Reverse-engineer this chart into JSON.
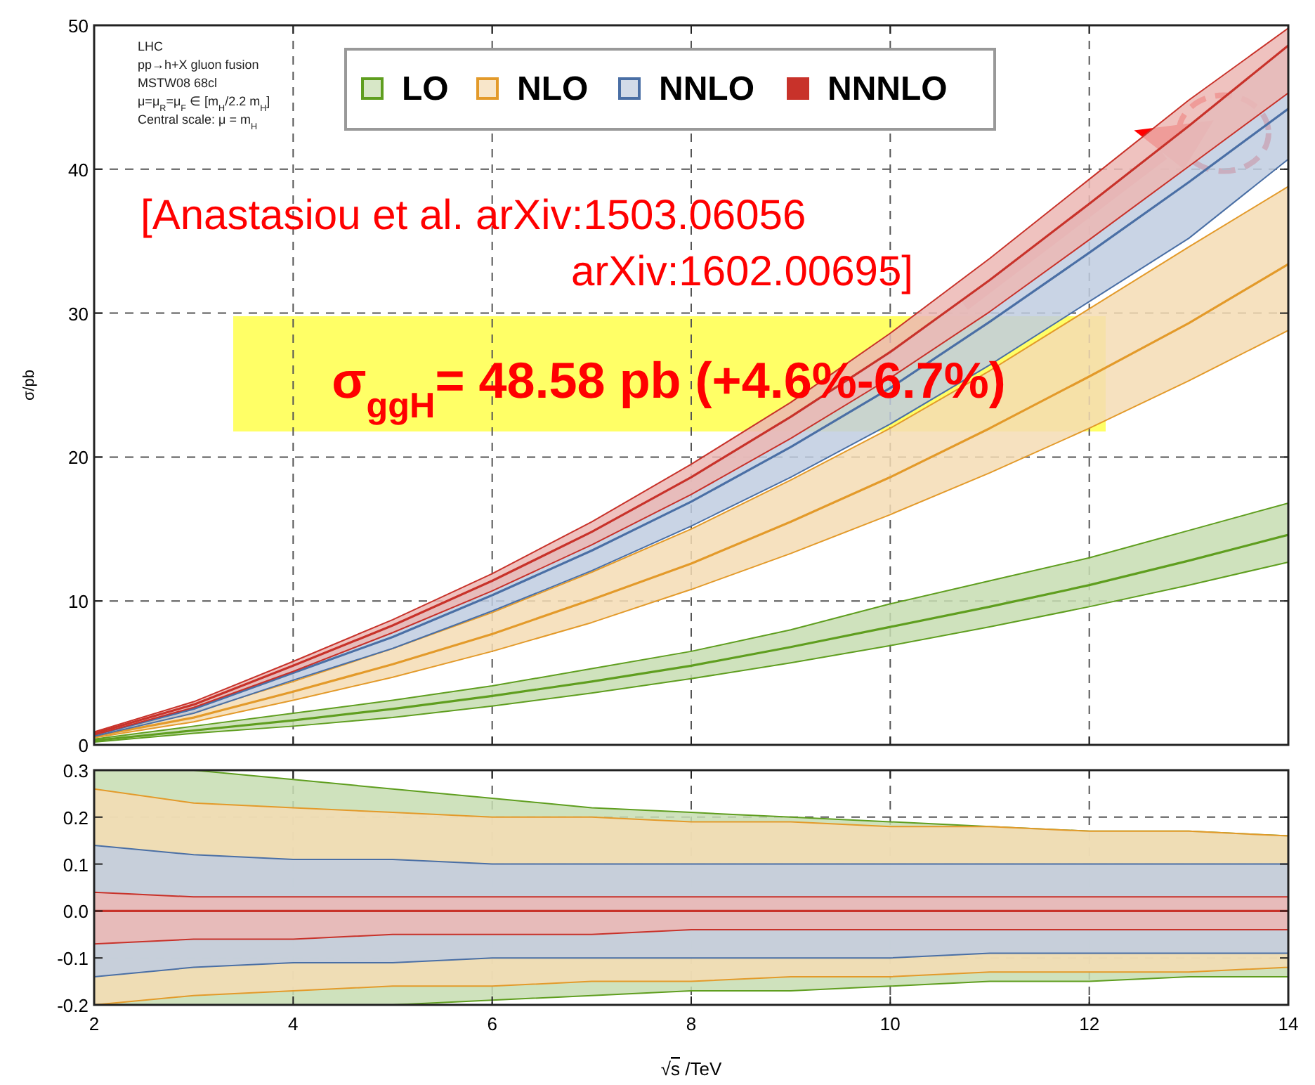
{
  "chart_data": [
    {
      "type": "line",
      "ylabel": "σ/pb",
      "x": [
        2,
        3,
        4,
        5,
        6,
        7,
        8,
        9,
        10,
        11,
        12,
        13,
        14
      ],
      "xlim": [
        2,
        14
      ],
      "xticks": [
        2,
        4,
        6,
        8,
        10,
        12,
        14
      ],
      "ylim": [
        0,
        50
      ],
      "yticks": [
        0,
        10,
        20,
        30,
        40,
        50
      ],
      "grid": true,
      "tick_labels": "y",
      "legend": "top",
      "annotations": [
        "LHC",
        "pp→h+X gluon fusion",
        "MSTW08 68cl",
        "μ=μ$_{R}$=μ$_{F}$ ∈ [m$_{H}$/2.2 m$_{H}$]",
        "Central scale: μ = m$_{H}$",
        "[Anastasiou et al. arXiv:1503.06056",
        "arXiv:1602.00695]",
        "σ$_{ggH}$= 48.58 pb (+4.6%-6.7%)"
      ],
      "series": [
        {
          "name": "LO",
          "color": "#5f9e1f",
          "values": [
            0.3,
            1.0,
            1.7,
            2.5,
            3.4,
            4.4,
            5.5,
            6.8,
            8.2,
            9.6,
            11.1,
            12.8,
            14.6
          ],
          "upper": [
            0.4,
            1.3,
            2.2,
            3.1,
            4.1,
            5.3,
            6.5,
            8.0,
            9.8,
            11.4,
            13.0,
            14.9,
            16.8
          ],
          "lower": [
            0.2,
            0.8,
            1.3,
            1.9,
            2.7,
            3.6,
            4.6,
            5.7,
            6.9,
            8.2,
            9.6,
            11.1,
            12.7
          ]
        },
        {
          "name": "NLO",
          "color": "#e39a2a",
          "values": [
            0.6,
            1.9,
            3.7,
            5.6,
            7.7,
            10.1,
            12.6,
            15.5,
            18.6,
            22.0,
            25.6,
            29.3,
            33.4
          ],
          "upper": [
            0.7,
            2.3,
            4.4,
            6.7,
            9.2,
            12.0,
            15.0,
            18.4,
            22.0,
            26.0,
            30.3,
            34.6,
            38.8
          ],
          "lower": [
            0.5,
            1.6,
            3.1,
            4.7,
            6.5,
            8.5,
            10.8,
            13.3,
            16.0,
            18.9,
            22.0,
            25.3,
            28.8
          ]
        },
        {
          "name": "NNLO",
          "color": "#4a6fa5",
          "values": [
            0.7,
            2.5,
            5.0,
            7.5,
            10.4,
            13.5,
            16.9,
            20.7,
            24.8,
            29.4,
            34.2,
            39.1,
            44.2
          ],
          "upper": [
            0.8,
            2.8,
            5.5,
            8.3,
            11.4,
            14.8,
            18.6,
            22.8,
            27.3,
            32.3,
            37.6,
            43.0,
            48.6
          ],
          "lower": [
            0.6,
            2.2,
            4.5,
            6.7,
            9.3,
            12.1,
            15.2,
            18.6,
            22.3,
            26.4,
            30.8,
            35.2,
            40.7
          ]
        },
        {
          "name": "NNNLO",
          "color": "#c8322a",
          "values": [
            0.8,
            2.8,
            5.5,
            8.3,
            11.4,
            14.8,
            18.6,
            22.8,
            27.3,
            32.3,
            37.6,
            43.0,
            48.6
          ],
          "upper": [
            0.9,
            3.0,
            5.8,
            8.7,
            11.9,
            15.5,
            19.5,
            23.8,
            28.6,
            33.8,
            39.3,
            44.8,
            49.8
          ],
          "lower": [
            0.7,
            2.6,
            5.1,
            7.8,
            10.7,
            13.9,
            17.4,
            21.3,
            25.5,
            30.1,
            35.1,
            40.2,
            45.3
          ]
        }
      ]
    },
    {
      "type": "line",
      "xlabel": "√s /TeV",
      "x": [
        2,
        3,
        4,
        5,
        6,
        7,
        8,
        9,
        10,
        11,
        12,
        13,
        14
      ],
      "xlim": [
        2,
        14
      ],
      "xticks": [
        2,
        4,
        6,
        8,
        10,
        12,
        14
      ],
      "ylim": [
        -0.2,
        0.3
      ],
      "yticks": [
        -0.2,
        -0.1,
        {
          "value": 0,
          "label": "0.0"
        },
        0.1,
        0.2,
        0.3
      ],
      "grid": true,
      "series": [
        {
          "color": "#5f9e1f",
          "values": [
            null,
            null,
            null,
            null,
            null,
            null,
            null,
            null,
            null,
            null,
            null,
            null,
            null
          ],
          "upper": [
            0.3,
            0.3,
            0.28,
            0.26,
            0.24,
            0.22,
            0.21,
            0.2,
            0.19,
            0.18,
            0.17,
            0.17,
            0.16
          ],
          "lower": [
            -0.2,
            -0.2,
            -0.2,
            -0.2,
            -0.19,
            -0.18,
            -0.17,
            -0.17,
            -0.16,
            -0.15,
            -0.15,
            -0.14,
            -0.14
          ]
        },
        {
          "color": "#e39a2a",
          "values": [
            null,
            null,
            null,
            null,
            null,
            null,
            null,
            null,
            null,
            null,
            null,
            null,
            null
          ],
          "upper": [
            0.26,
            0.23,
            0.22,
            0.21,
            0.2,
            0.2,
            0.19,
            0.19,
            0.18,
            0.18,
            0.17,
            0.17,
            0.16
          ],
          "lower": [
            -0.2,
            -0.18,
            -0.17,
            -0.16,
            -0.16,
            -0.15,
            -0.15,
            -0.14,
            -0.14,
            -0.13,
            -0.13,
            -0.13,
            -0.12
          ]
        },
        {
          "color": "#4a6fa5",
          "values": [
            null,
            null,
            null,
            null,
            null,
            null,
            null,
            null,
            null,
            null,
            null,
            null,
            null
          ],
          "upper": [
            0.14,
            0.12,
            0.11,
            0.11,
            0.1,
            0.1,
            0.1,
            0.1,
            0.1,
            0.1,
            0.1,
            0.1,
            0.1
          ],
          "lower": [
            -0.14,
            -0.12,
            -0.11,
            -0.11,
            -0.1,
            -0.1,
            -0.1,
            -0.1,
            -0.1,
            -0.09,
            -0.09,
            -0.09,
            -0.09
          ]
        },
        {
          "color": "#c8322a",
          "values": [
            0,
            0,
            0,
            0,
            0,
            0,
            0,
            0,
            0,
            0,
            0,
            0,
            0
          ],
          "upper": [
            0.04,
            0.03,
            0.03,
            0.03,
            0.03,
            0.03,
            0.03,
            0.03,
            0.03,
            0.03,
            0.03,
            0.03,
            0.03
          ],
          "lower": [
            -0.07,
            -0.06,
            -0.06,
            -0.05,
            -0.05,
            -0.05,
            -0.04,
            -0.04,
            -0.04,
            -0.04,
            -0.04,
            -0.04,
            -0.04
          ]
        }
      ]
    }
  ]
}
